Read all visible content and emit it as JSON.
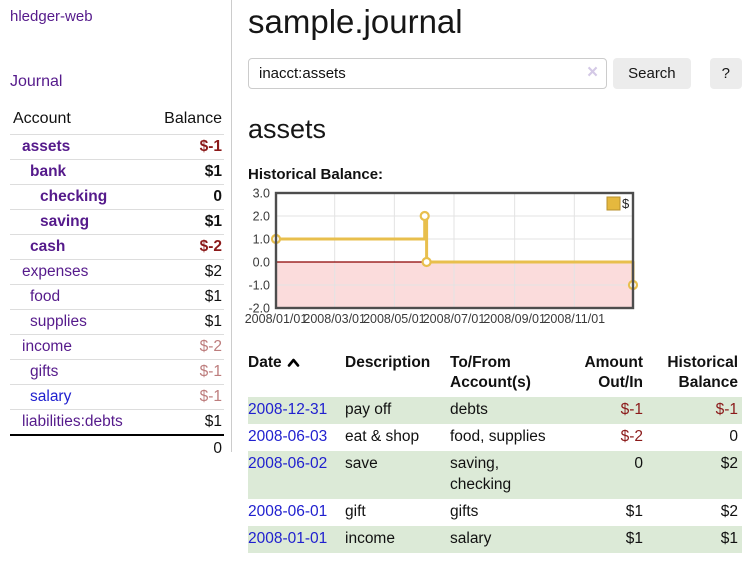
{
  "app": {
    "title": "hledger-web"
  },
  "sidebar": {
    "journal_link": "Journal",
    "accounts_table": {
      "headers": {
        "account": "Account",
        "balance": "Balance"
      },
      "rows": [
        {
          "name": "assets",
          "balance": "$-1",
          "indent": 0,
          "bold": true
        },
        {
          "name": "bank",
          "balance": "$1",
          "indent": 1,
          "bold": true
        },
        {
          "name": "checking",
          "balance": "0",
          "indent": 2,
          "bold": true
        },
        {
          "name": "saving",
          "balance": "$1",
          "indent": 2,
          "bold": true
        },
        {
          "name": "cash",
          "balance": "$-2",
          "indent": 1,
          "bold": true
        },
        {
          "name": "expenses",
          "balance": "$2",
          "indent": 0,
          "bold": false
        },
        {
          "name": "food",
          "balance": "$1",
          "indent": 1,
          "bold": false
        },
        {
          "name": "supplies",
          "balance": "$1",
          "indent": 1,
          "bold": false
        },
        {
          "name": "income",
          "balance": "$-2",
          "indent": 0,
          "bold": false
        },
        {
          "name": "gifts",
          "balance": "$-1",
          "indent": 1,
          "bold": false
        },
        {
          "name": "salary",
          "balance": "$-1",
          "indent": 1,
          "bold": false,
          "link": "blue"
        },
        {
          "name": "liabilities:debts",
          "balance": "$1",
          "indent": 0,
          "bold": false
        }
      ],
      "total": "0"
    }
  },
  "header": {
    "title": "sample.journal"
  },
  "search": {
    "value": "inacct:assets",
    "clear_icon": "×",
    "button": "Search",
    "help_button": "?"
  },
  "account_page": {
    "title": "assets",
    "chart_label": "Historical Balance:"
  },
  "chart_data": {
    "type": "line",
    "step": true,
    "title": "Historical Balance",
    "x_range": [
      "2008-01-01",
      "2008-12-31"
    ],
    "ylim": [
      -2.0,
      3.0
    ],
    "yticks": [
      3.0,
      2.0,
      1.0,
      0.0,
      -1.0,
      -2.0
    ],
    "ytick_labels": [
      "3.0",
      "2.0",
      "1.0",
      "0.0",
      "-1.0",
      "-2.0"
    ],
    "xticks": [
      "2008-01-01",
      "2008-03-01",
      "2008-05-01",
      "2008-07-01",
      "2008-09-01",
      "2008-11-01"
    ],
    "xtick_labels": [
      "2008/01/01",
      "2008/03/01",
      "2008/05/01",
      "2008/07/01",
      "2008/09/01",
      "2008/11/01"
    ],
    "grid": true,
    "legend": {
      "label": "$",
      "position": "top-right"
    },
    "series": [
      {
        "name": "$",
        "points": [
          [
            "2008-01-01",
            1
          ],
          [
            "2008-06-01",
            2
          ],
          [
            "2008-06-03",
            0
          ],
          [
            "2008-12-31",
            -1
          ]
        ]
      }
    ]
  },
  "register_table": {
    "headers": {
      "date": "Date",
      "description": "Description",
      "accounts": "To/From Account(s)",
      "amount": "Amount Out/In",
      "balance": "Historical Balance"
    },
    "rows": [
      {
        "date": "2008-12-31",
        "description": "pay off",
        "accounts": "debts",
        "amount": "$-1",
        "balance": "$-1"
      },
      {
        "date": "2008-06-03",
        "description": "eat & shop",
        "accounts": "food, supplies",
        "amount": "$-2",
        "balance": "0"
      },
      {
        "date": "2008-06-02",
        "description": "save",
        "accounts": "saving, checking",
        "amount": "0",
        "balance": "$2"
      },
      {
        "date": "2008-06-01",
        "description": "gift",
        "accounts": "gifts",
        "amount": "$1",
        "balance": "$2"
      },
      {
        "date": "2008-01-01",
        "description": "income",
        "accounts": "salary",
        "amount": "$1",
        "balance": "$1"
      }
    ]
  },
  "colors": {
    "link_purple": "#551a8b",
    "link_blue": "#2020cf",
    "text_dark": "#111111",
    "negative_dark": "#8b1a1a",
    "negative_light": "#bd7d7d",
    "row_green": "#dcead7",
    "button_bg": "#ececec",
    "chart_line": "#e8bf4d",
    "chart_marker_fill": "#ffffff",
    "chart_negative_fill": "#fbdcdc",
    "chart_zero_line": "#8b0000",
    "chart_border": "#4d4d4d",
    "chart_grid": "#e3e3e3",
    "chart_tick_text": "#3a3a3a",
    "legend_fill": "#e5b83e",
    "legend_border": "#b8912f"
  }
}
